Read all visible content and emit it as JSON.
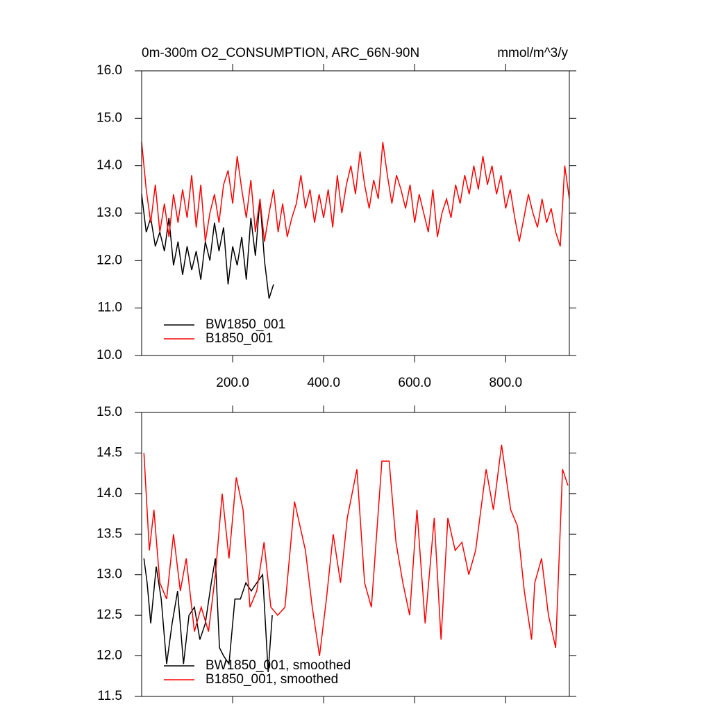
{
  "chart_data": [
    {
      "type": "line",
      "title": "0m-300m O2_CONSUMPTION, ARC_66N-90N",
      "subtitle": "mmol/m^3/y",
      "xlim": [
        0,
        940
      ],
      "ylim": [
        10,
        16
      ],
      "xticks": [
        {
          "value": 200,
          "label": "200.0"
        },
        {
          "value": 400,
          "label": "400.0"
        },
        {
          "value": 600,
          "label": "600.0"
        },
        {
          "value": 800,
          "label": "800.0"
        }
      ],
      "yticks": [
        {
          "value": 10,
          "label": "10.0"
        },
        {
          "value": 11,
          "label": "11.0"
        },
        {
          "value": 12,
          "label": "12.0"
        },
        {
          "value": 13,
          "label": "13.0"
        },
        {
          "value": 14,
          "label": "14.0"
        },
        {
          "value": 15,
          "label": "15.0"
        },
        {
          "value": 16,
          "label": "16.0"
        }
      ],
      "series": [
        {
          "name": "BW1850_001",
          "color": "#000000",
          "x": [
            0,
            10,
            20,
            30,
            40,
            50,
            60,
            70,
            80,
            90,
            100,
            110,
            120,
            130,
            140,
            150,
            160,
            170,
            180,
            190,
            200,
            210,
            220,
            230,
            240,
            250,
            260,
            270,
            280,
            290
          ],
          "values": [
            13.4,
            12.6,
            12.9,
            12.3,
            12.6,
            12.2,
            12.9,
            11.9,
            12.4,
            11.7,
            12.3,
            11.8,
            12.2,
            11.6,
            12.4,
            12.0,
            12.8,
            12.2,
            12.7,
            11.5,
            12.3,
            11.9,
            12.5,
            11.6,
            12.9,
            12.1,
            13.3,
            12.0,
            11.2,
            11.5
          ]
        },
        {
          "name": "B1850_001",
          "color": "#ff0000",
          "x": [
            0,
            10,
            20,
            30,
            40,
            50,
            60,
            70,
            80,
            90,
            100,
            110,
            120,
            130,
            140,
            150,
            160,
            170,
            180,
            190,
            200,
            210,
            220,
            230,
            240,
            250,
            260,
            270,
            280,
            290,
            300,
            310,
            320,
            330,
            340,
            350,
            360,
            370,
            380,
            390,
            400,
            410,
            420,
            430,
            440,
            450,
            460,
            470,
            480,
            490,
            500,
            510,
            520,
            530,
            540,
            550,
            560,
            570,
            580,
            590,
            600,
            610,
            620,
            630,
            640,
            650,
            660,
            670,
            680,
            690,
            700,
            710,
            720,
            730,
            740,
            750,
            760,
            770,
            780,
            790,
            800,
            810,
            820,
            830,
            840,
            850,
            860,
            870,
            880,
            890,
            900,
            910,
            920,
            930,
            940
          ],
          "values": [
            14.5,
            13.5,
            12.8,
            13.6,
            12.6,
            13.2,
            12.5,
            13.4,
            12.8,
            13.5,
            12.9,
            13.8,
            12.7,
            13.6,
            12.4,
            13.0,
            13.4,
            12.8,
            13.6,
            13.9,
            13.2,
            14.2,
            13.5,
            12.9,
            13.7,
            12.6,
            13.3,
            12.4,
            13.0,
            13.5,
            12.6,
            13.2,
            12.5,
            12.9,
            13.2,
            13.8,
            13.1,
            13.5,
            12.8,
            13.4,
            12.9,
            13.5,
            12.7,
            13.8,
            13.0,
            13.6,
            14.0,
            13.4,
            14.3,
            13.6,
            13.1,
            13.7,
            13.3,
            14.5,
            13.8,
            13.2,
            13.8,
            13.5,
            13.1,
            13.6,
            12.8,
            13.4,
            13.0,
            12.6,
            13.5,
            12.5,
            13.0,
            13.3,
            12.9,
            13.6,
            13.2,
            13.8,
            13.4,
            14.0,
            13.5,
            14.2,
            13.6,
            14.0,
            13.4,
            13.8,
            13.1,
            13.5,
            12.9,
            12.4,
            12.9,
            13.4,
            13.0,
            12.7,
            13.3,
            12.8,
            13.1,
            12.6,
            12.3,
            14.0,
            13.3
          ]
        }
      ]
    },
    {
      "type": "line",
      "xlim": [
        0,
        940
      ],
      "ylim": [
        11.5,
        15
      ],
      "xticks": [
        200,
        400,
        600,
        800
      ],
      "yticks": [
        {
          "value": 11.5,
          "label": "11.5"
        },
        {
          "value": 12,
          "label": "12.0"
        },
        {
          "value": 12.5,
          "label": "12.5"
        },
        {
          "value": 13,
          "label": "13.0"
        },
        {
          "value": 13.5,
          "label": "13.5"
        },
        {
          "value": 14,
          "label": "14.0"
        },
        {
          "value": 14.5,
          "label": "14.5"
        },
        {
          "value": 15,
          "label": "15.0"
        }
      ],
      "series": [
        {
          "name": "BW1850_001, smoothed",
          "color": "#000000",
          "x": [
            5,
            12,
            20,
            32,
            43,
            55,
            67,
            79,
            92,
            104,
            116,
            128,
            140,
            153,
            162,
            171,
            180,
            192,
            205,
            217,
            229,
            241,
            253,
            266,
            278,
            287
          ],
          "values": [
            13.2,
            12.9,
            12.4,
            13.1,
            12.7,
            11.9,
            12.4,
            12.8,
            11.9,
            12.5,
            12.6,
            12.2,
            12.4,
            12.9,
            13.2,
            12.1,
            12.0,
            11.9,
            12.7,
            12.7,
            12.9,
            12.8,
            12.9,
            13.0,
            11.8,
            12.5
          ]
        },
        {
          "name": "B1850_001, smoothed",
          "color": "#ff0000",
          "x": [
            5,
            17,
            27,
            40,
            55,
            70,
            85,
            98,
            116,
            131,
            147,
            162,
            177,
            192,
            208,
            223,
            238,
            253,
            269,
            284,
            299,
            315,
            336,
            360,
            375,
            391,
            406,
            421,
            437,
            452,
            473,
            490,
            505,
            528,
            544,
            559,
            574,
            589,
            605,
            623,
            643,
            658,
            673,
            689,
            704,
            719,
            734,
            757,
            773,
            791,
            811,
            826,
            841,
            857,
            864,
            879,
            894,
            910,
            925,
            937
          ],
          "values": [
            14.5,
            13.3,
            13.8,
            12.9,
            12.7,
            13.5,
            12.8,
            13.2,
            12.3,
            12.6,
            12.3,
            13.0,
            14.0,
            13.2,
            14.2,
            13.8,
            12.6,
            12.8,
            13.4,
            12.6,
            12.5,
            12.6,
            13.9,
            13.3,
            12.6,
            12.0,
            12.7,
            13.5,
            12.9,
            13.7,
            14.3,
            12.9,
            12.6,
            14.4,
            14.4,
            13.4,
            12.9,
            12.5,
            13.8,
            12.4,
            13.7,
            12.2,
            13.7,
            13.3,
            13.4,
            13.0,
            13.3,
            14.3,
            13.8,
            14.6,
            13.8,
            13.6,
            12.8,
            12.2,
            12.9,
            13.2,
            12.5,
            12.1,
            14.3,
            14.1
          ]
        }
      ]
    }
  ]
}
